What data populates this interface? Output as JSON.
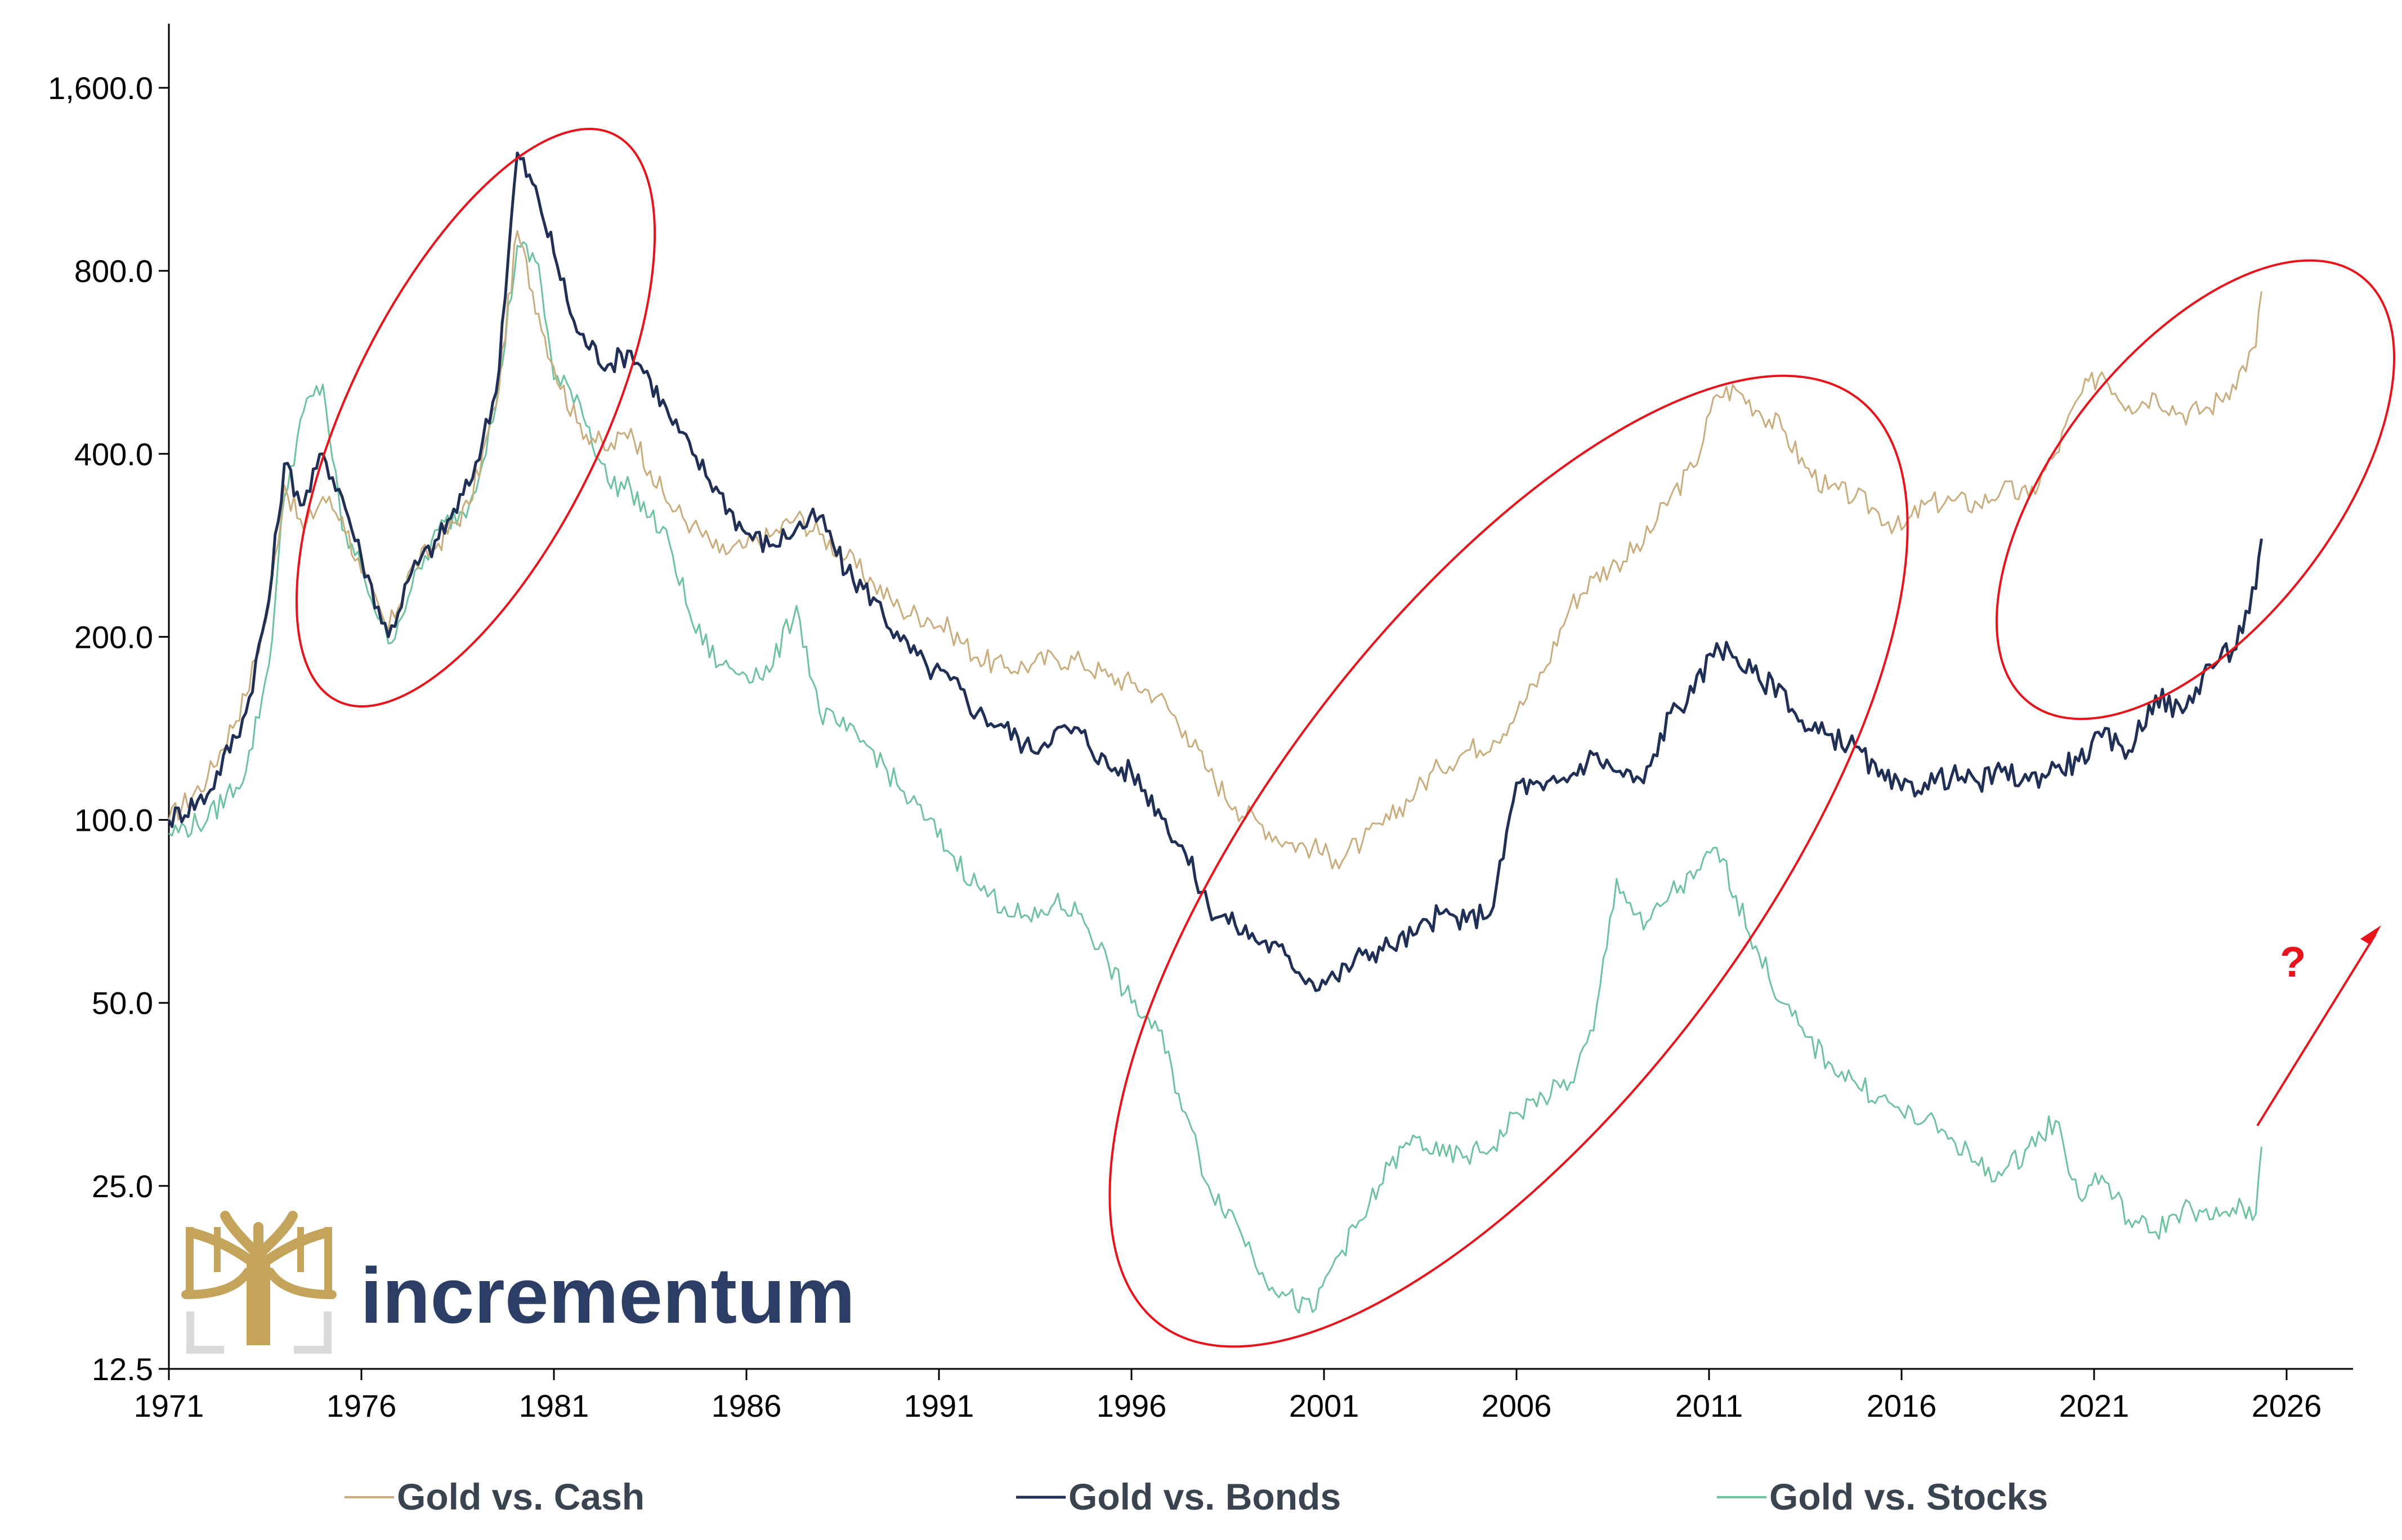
{
  "chart_data": {
    "type": "line",
    "title": "",
    "xlabel": "",
    "ylabel": "",
    "y_scale": "log2",
    "ylim": [
      12.5,
      2300
    ],
    "xlim": [
      1971.0,
      2028.0
    ],
    "y_ticks": [
      12.5,
      25,
      50,
      100,
      200,
      400,
      800,
      1600
    ],
    "y_tick_labels": [
      "12.5",
      "25.0",
      "50.0",
      "100.0",
      "200.0",
      "400.0",
      "800.0",
      "1,600.0"
    ],
    "x_ticks": [
      1971,
      1976,
      1981,
      1986,
      1991,
      1996,
      2001,
      2006,
      2011,
      2016,
      2021,
      2026
    ],
    "x_tick_labels": [
      "1971",
      "1976",
      "1981",
      "1986",
      "1991",
      "1996",
      "2001",
      "2006",
      "2011",
      "2016",
      "2021",
      "2026"
    ],
    "grid": false,
    "legend_position": "bottom",
    "series": [
      {
        "name": "Gold vs. Cash",
        "color": "#c9ad7d",
        "x": [
          1971.0,
          1972.0,
          1973.0,
          1973.6,
          1974.0,
          1974.5,
          1975.0,
          1975.5,
          1976.0,
          1976.7,
          1977.3,
          1978.0,
          1978.8,
          1979.5,
          1980.05,
          1980.6,
          1981.0,
          1981.6,
          1982.4,
          1983.0,
          1983.5,
          1984.0,
          1984.6,
          1985.3,
          1985.9,
          1986.6,
          1987.3,
          1987.9,
          1988.6,
          1989.3,
          1990.0,
          1990.7,
          1991.3,
          1992.0,
          1992.7,
          1993.4,
          1994.0,
          1994.7,
          1995.4,
          1996.0,
          1996.7,
          1997.4,
          1998.0,
          1998.7,
          1999.4,
          2000.0,
          2000.7,
          2001.3,
          2002.0,
          2002.7,
          2003.4,
          2004.0,
          2004.7,
          2005.4,
          2006.0,
          2006.7,
          2007.4,
          2008.0,
          2008.6,
          2009.3,
          2010.0,
          2010.6,
          2011.2,
          2011.7,
          2012.3,
          2012.9,
          2013.5,
          2014.1,
          2014.8,
          2015.4,
          2016.0,
          2016.6,
          2017.3,
          2018.0,
          2018.6,
          2019.3,
          2020.0,
          2020.6,
          2021.2,
          2021.9,
          2022.6,
          2023.3,
          2024.0,
          2024.6,
          2025.2,
          2025.35
        ],
        "values": [
          100,
          117,
          160,
          225,
          355,
          300,
          340,
          315,
          255,
          205,
          260,
          285,
          330,
          480,
          930,
          680,
          555,
          450,
          405,
          440,
          375,
          330,
          305,
          275,
          280,
          292,
          315,
          295,
          270,
          245,
          222,
          215,
          205,
          185,
          178,
          180,
          185,
          182,
          172,
          168,
          160,
          140,
          120,
          105,
          98,
          92,
          90,
          86,
          92,
          100,
          112,
          122,
          130,
          135,
          150,
          175,
          225,
          250,
          265,
          285,
          340,
          380,
          500,
          510,
          470,
          440,
          380,
          350,
          340,
          320,
          300,
          330,
          335,
          330,
          350,
          340,
          400,
          495,
          545,
          480,
          500,
          465,
          475,
          520,
          600,
          740
        ]
      },
      {
        "name": "Gold vs. Bonds",
        "color": "#1f2f55",
        "x": [
          1971.0,
          1972.0,
          1973.0,
          1973.6,
          1974.0,
          1974.5,
          1975.0,
          1975.5,
          1976.0,
          1976.7,
          1977.3,
          1978.0,
          1978.8,
          1979.5,
          1980.05,
          1980.6,
          1981.0,
          1981.6,
          1982.4,
          1983.0,
          1983.5,
          1984.0,
          1984.6,
          1985.3,
          1985.9,
          1986.6,
          1987.3,
          1987.9,
          1988.6,
          1989.3,
          1990.0,
          1990.7,
          1991.3,
          1992.0,
          1992.7,
          1993.4,
          1994.0,
          1994.7,
          1995.4,
          1996.0,
          1996.7,
          1997.4,
          1998.0,
          1998.7,
          1999.4,
          2000.0,
          2000.7,
          2001.3,
          2002.0,
          2002.7,
          2003.4,
          2004.0,
          2004.7,
          2005.4,
          2006.0,
          2006.7,
          2007.4,
          2008.0,
          2008.6,
          2009.3,
          2010.0,
          2010.6,
          2011.2,
          2011.7,
          2012.3,
          2012.9,
          2013.5,
          2014.1,
          2014.8,
          2015.4,
          2016.0,
          2016.6,
          2017.3,
          2018.0,
          2018.6,
          2019.3,
          2020.0,
          2020.6,
          2021.2,
          2021.9,
          2022.6,
          2023.3,
          2024.0,
          2024.6,
          2025.2,
          2025.35
        ],
        "values": [
          100,
          110,
          150,
          230,
          385,
          330,
          400,
          340,
          270,
          200,
          255,
          290,
          355,
          505,
          1250,
          1050,
          855,
          635,
          560,
          590,
          530,
          460,
          400,
          345,
          300,
          282,
          302,
          315,
          255,
          232,
          197,
          178,
          170,
          150,
          142,
          130,
          140,
          139,
          122,
          120,
          104,
          88,
          72,
          67,
          63,
          60,
          54,
          55,
          60,
          62,
          65,
          70,
          68,
          72,
          115,
          112,
          118,
          128,
          120,
          115,
          150,
          162,
          195,
          185,
          170,
          165,
          140,
          138,
          132,
          118,
          112,
          115,
          118,
          115,
          120,
          116,
          122,
          125,
          137,
          130,
          160,
          150,
          180,
          190,
          240,
          290
        ]
      },
      {
        "name": "Gold vs. Stocks",
        "color": "#6ec2a0",
        "x": [
          1971.0,
          1972.0,
          1973.0,
          1973.6,
          1974.0,
          1974.5,
          1975.0,
          1975.5,
          1976.0,
          1976.7,
          1977.3,
          1978.0,
          1978.8,
          1979.5,
          1980.05,
          1980.6,
          1981.0,
          1981.6,
          1982.4,
          1983.0,
          1983.5,
          1984.0,
          1984.6,
          1985.3,
          1985.9,
          1986.6,
          1987.3,
          1987.9,
          1988.6,
          1989.3,
          1990.0,
          1990.7,
          1991.3,
          1992.0,
          1992.7,
          1993.4,
          1994.0,
          1994.7,
          1995.4,
          1996.0,
          1996.7,
          1997.4,
          1998.0,
          1998.7,
          1999.4,
          2000.0,
          2000.7,
          2001.3,
          2002.0,
          2002.7,
          2003.4,
          2004.0,
          2004.7,
          2005.4,
          2006.0,
          2006.7,
          2007.4,
          2008.0,
          2008.6,
          2009.3,
          2010.0,
          2010.6,
          2011.2,
          2011.7,
          2012.3,
          2012.9,
          2013.5,
          2014.1,
          2014.8,
          2015.4,
          2016.0,
          2016.6,
          2017.3,
          2018.0,
          2018.6,
          2019.3,
          2020.0,
          2020.6,
          2021.2,
          2021.9,
          2022.6,
          2023.3,
          2024.0,
          2024.6,
          2025.2,
          2025.35
        ],
        "values": [
          95,
          100,
          120,
          180,
          340,
          470,
          520,
          300,
          260,
          195,
          240,
          300,
          330,
          480,
          880,
          820,
          530,
          500,
          360,
          350,
          315,
          285,
          210,
          180,
          175,
          175,
          225,
          150,
          140,
          130,
          112,
          100,
          88,
          78,
          72,
          68,
          73,
          70,
          58,
          50,
          45,
          33,
          25,
          22,
          18,
          16.5,
          15.5,
          19,
          22,
          27,
          30,
          28,
          28,
          29,
          33,
          35,
          37,
          45,
          80,
          66,
          76,
          80,
          90,
          75,
          60,
          50,
          44,
          40,
          37,
          35,
          33,
          32,
          30,
          27,
          26,
          29,
          32,
          24,
          26,
          22,
          21,
          23,
          22,
          23,
          22.5,
          29
        ]
      }
    ],
    "annotations": {
      "question_mark": "?"
    }
  },
  "legend": {
    "items": [
      {
        "label": "Gold vs. Cash",
        "color": "#c9ad7d"
      },
      {
        "label": "Gold vs. Bonds",
        "color": "#1f2f55"
      },
      {
        "label": "Gold vs. Stocks",
        "color": "#6ec2a0"
      }
    ]
  },
  "brand": {
    "name": "incrementum",
    "logo_color": "#c4a35a",
    "text_color": "#2c3e66"
  },
  "annotation_color": "#e8141c"
}
